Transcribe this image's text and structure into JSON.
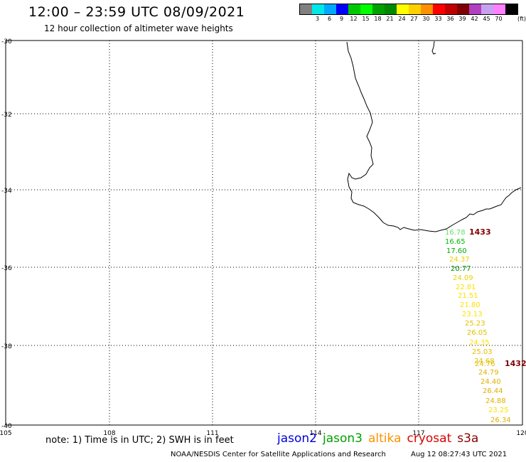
{
  "header": {
    "title": "12:00 – 23:59 UTC 08/09/2021",
    "subtitle": "12 hour collection of altimeter wave heights"
  },
  "legend": {
    "swatches": [
      {
        "color": "#808080",
        "label": ""
      },
      {
        "color": "#00e8e8",
        "label": "3"
      },
      {
        "color": "#00a8ff",
        "label": "6"
      },
      {
        "color": "#0000ff",
        "label": "9"
      },
      {
        "color": "#00c800",
        "label": "12"
      },
      {
        "color": "#00ff00",
        "label": "15"
      },
      {
        "color": "#00a000",
        "label": "18"
      },
      {
        "color": "#008800",
        "label": "21"
      },
      {
        "color": "#ffff00",
        "label": "24"
      },
      {
        "color": "#ffd000",
        "label": "27"
      },
      {
        "color": "#ff9000",
        "label": "30"
      },
      {
        "color": "#ff0000",
        "label": "33"
      },
      {
        "color": "#c00000",
        "label": "36"
      },
      {
        "color": "#800000",
        "label": "39"
      },
      {
        "color": "#b040c0",
        "label": "42"
      },
      {
        "color": "#c8a0f0",
        "label": "45"
      },
      {
        "color": "#ff80ff",
        "label": "70"
      },
      {
        "color": "#000000",
        "label": ""
      }
    ],
    "unit": "(ft)"
  },
  "map": {
    "lat_labels": [
      "-30",
      "-32",
      "-34",
      "-36",
      "-38",
      "-40"
    ],
    "lon_labels": [
      "105",
      "108",
      "111",
      "114",
      "117",
      "120"
    ],
    "track_points": [
      {
        "value": "16.78",
        "color": "#66dd66"
      },
      {
        "value": "16.65",
        "color": "#00bb00"
      },
      {
        "value": "17.60",
        "color": "#00aa00"
      },
      {
        "value": "24.37",
        "color": "#e8d000"
      },
      {
        "value": "20.77",
        "color": "#008800"
      },
      {
        "value": "24.09",
        "color": "#e8d000"
      },
      {
        "value": "22.81",
        "color": "#ffe000"
      },
      {
        "value": "21.51",
        "color": "#ffe000"
      },
      {
        "value": "21.80",
        "color": "#ffe000"
      },
      {
        "value": "23.13",
        "color": "#ffe000"
      },
      {
        "value": "25.23",
        "color": "#e0c000"
      },
      {
        "value": "26.05",
        "color": "#e0c000"
      },
      {
        "value": "24.35",
        "color": "#ffe000"
      },
      {
        "value": "25.03",
        "color": "#e0c000"
      },
      {
        "value": "24.68",
        "color": "#e0c000"
      },
      {
        "value": "24.76",
        "color": "#e0c000"
      },
      {
        "value": "24.79",
        "color": "#e0b000"
      },
      {
        "value": "24.40",
        "color": "#e0b000"
      },
      {
        "value": "26.44",
        "color": "#e0b000"
      },
      {
        "value": "24.88",
        "color": "#e0b000"
      },
      {
        "value": "23.25",
        "color": "#ffe000"
      },
      {
        "value": "26.34",
        "color": "#e0b000"
      }
    ],
    "time_labels": [
      "1433",
      "1432"
    ],
    "time_label_color": "#800000"
  },
  "footer": {
    "note": "note: 1) Time is in UTC; 2) SWH is in feet",
    "satellites": [
      {
        "name": "jason2",
        "color": "#0000dd"
      },
      {
        "name": "jason3",
        "color": "#00a000"
      },
      {
        "name": "altika",
        "color": "#ff9000"
      },
      {
        "name": "cryosat",
        "color": "#dd0000"
      },
      {
        "name": "s3a",
        "color": "#880000"
      }
    ],
    "credits": "NOAA/NESDIS Center for Satellite Applications and Research",
    "timestamp": "Aug 12 08:27:43 UTC 2021"
  }
}
